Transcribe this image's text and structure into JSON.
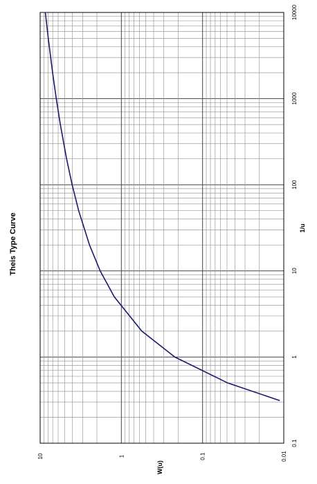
{
  "chart_data": {
    "type": "line",
    "title": "Theis Type Curve",
    "xlabel": "1/u",
    "ylabel": "W(u)",
    "x_scale": "log",
    "y_scale": "log",
    "xlim": [
      0.1,
      10000
    ],
    "ylim": [
      0.01,
      10
    ],
    "grid": true,
    "orientation": "rotated-90",
    "x_ticks": [
      "0.1",
      "1",
      "10",
      "100",
      "1000",
      "10000"
    ],
    "y_ticks": [
      "10",
      "1",
      "0.1",
      "0.01"
    ],
    "line_color": "#1a1a6e",
    "series": [
      {
        "x": [
          0.3125,
          0.5,
          1,
          2,
          5,
          10,
          20,
          50,
          100,
          200,
          500,
          1000,
          2000,
          5000,
          10000
        ],
        "y": [
          0.0112,
          0.0489,
          0.2194,
          0.5598,
          1.2227,
          1.8229,
          2.4679,
          3.3547,
          4.0379,
          4.7261,
          5.6394,
          6.3315,
          7.0247,
          7.9402,
          8.6332
        ]
      }
    ]
  }
}
